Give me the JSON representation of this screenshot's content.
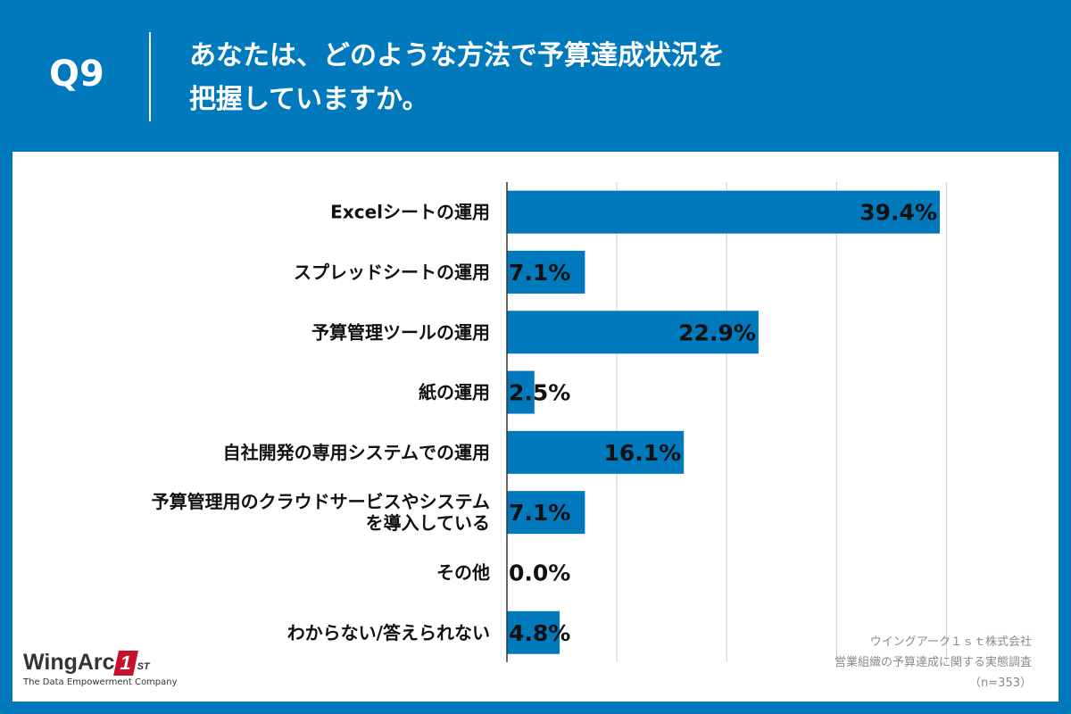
{
  "header": {
    "qnum": "Q9",
    "question_line1": "あなたは、どのような方法で予算達成状況を",
    "question_line2": "把握していますか。"
  },
  "chart_data": {
    "type": "bar",
    "orientation": "horizontal",
    "title": "あなたは、どのような方法で予算達成状況を把握していますか。",
    "categories": [
      [
        "Excelシートの運用"
      ],
      [
        "スプレッドシートの運用"
      ],
      [
        "予算管理ツールの運用"
      ],
      [
        "紙の運用"
      ],
      [
        "自社開発の専用システムでの運用"
      ],
      [
        "予算管理用のクラウドサービスやシステム",
        "を導入している"
      ],
      [
        "その他"
      ],
      [
        "わからない/答えられない"
      ]
    ],
    "values": [
      39.4,
      7.1,
      22.9,
      2.5,
      16.1,
      7.1,
      0.0,
      4.8
    ],
    "value_labels": [
      "39.4%",
      "7.1%",
      "22.9%",
      "2.5%",
      "16.1%",
      "7.1%",
      "0.0%",
      "4.8%"
    ],
    "xlim": [
      0,
      40
    ],
    "grid": true,
    "xlabel": "",
    "ylabel": "",
    "bar_color": "#0079bd"
  },
  "logo": {
    "name": "WingArc",
    "mark": "1",
    "suffix": "ST",
    "tagline": "The Data Empowerment Company"
  },
  "credits": {
    "line1": "ウイングアーク１ｓｔ株式会社",
    "line2": "営業組織の予算達成に関する実態調査",
    "line3": "（n=353）"
  },
  "colors": {
    "accent": "#0079bd",
    "text": "#111111",
    "grid": "#cccccc"
  }
}
